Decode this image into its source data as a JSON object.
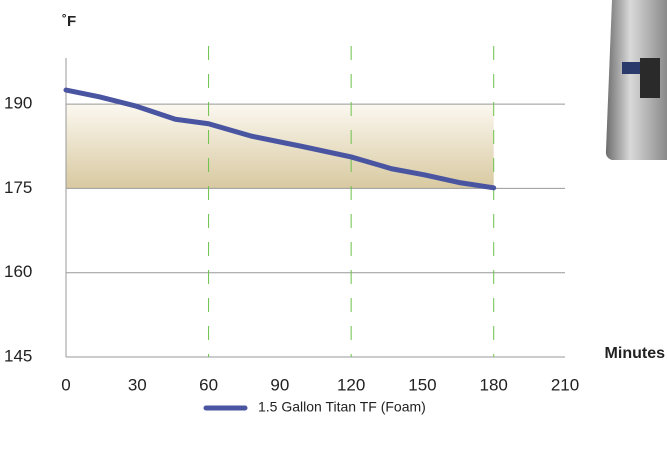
{
  "chart_data": {
    "type": "line",
    "y_label": "˚F",
    "x_label": "Minutes",
    "x": [
      0,
      14,
      29,
      46,
      60,
      78,
      99,
      120,
      137,
      151,
      166,
      180
    ],
    "series": [
      {
        "name": "1.5 Gallon Titan TF (Foam)",
        "color": "#4a55a2",
        "values": [
          192.5,
          191.3,
          189.7,
          187.3,
          186.5,
          184.3,
          182.5,
          180.6,
          178.5,
          177.4,
          176,
          175.1
        ]
      }
    ],
    "xlim": [
      0,
      210
    ],
    "xticks": [
      0,
      30,
      60,
      90,
      120,
      150,
      180,
      210
    ],
    "ylim": [
      145,
      195
    ],
    "yticks": [
      145,
      160,
      175,
      190
    ],
    "shaded_range": {
      "x": [
        0,
        180
      ],
      "y": [
        175,
        190
      ]
    },
    "vlines": [
      60,
      120,
      180
    ],
    "grid": true
  }
}
